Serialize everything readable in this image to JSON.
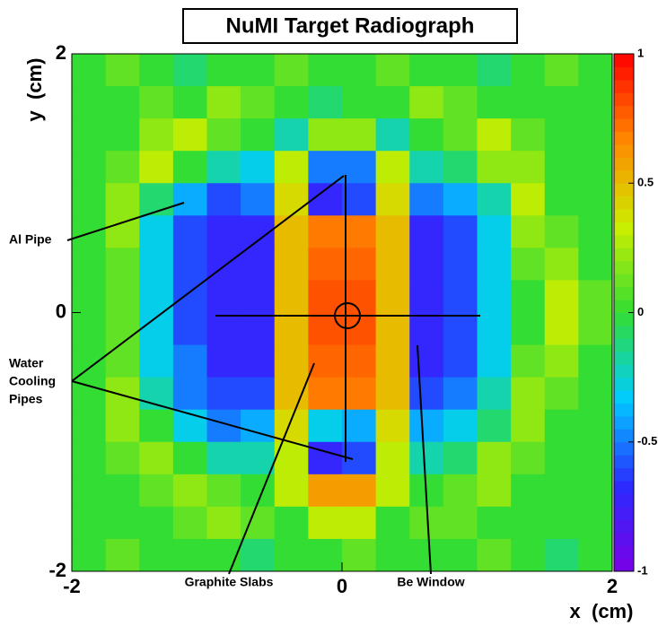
{
  "chart_data": {
    "type": "heatmap",
    "title": "NuMI Target Radiograph",
    "x_label": "x  (cm)",
    "y_label": "y  (cm)",
    "xlim": [
      -2,
      2
    ],
    "ylim": [
      -2,
      2
    ],
    "xticks": [
      -2,
      0,
      2
    ],
    "yticks": [
      -2,
      0,
      2
    ],
    "zlim": [
      -1,
      1
    ],
    "zticks": [
      -1,
      -0.5,
      0,
      0.5,
      1
    ],
    "colorscale": [
      "#7a00e6",
      "#2b2bff",
      "#00ccff",
      "#33dd33",
      "#ccee00",
      "#ff8800",
      "#ff0000"
    ],
    "z": [
      [
        0,
        0.1,
        0,
        -0.1,
        0,
        0,
        0.1,
        0,
        0,
        0.1,
        0,
        0,
        -0.1,
        0,
        0.1,
        0
      ],
      [
        0,
        0,
        0.1,
        0,
        0.2,
        0.1,
        0,
        -0.1,
        0,
        0,
        0.2,
        0.1,
        0,
        0,
        0,
        0
      ],
      [
        0,
        0,
        0.2,
        0.3,
        0.1,
        0,
        -0.2,
        0.2,
        0.2,
        -0.2,
        0,
        0.1,
        0.3,
        0.1,
        0,
        0
      ],
      [
        0,
        0.1,
        0.3,
        0,
        -0.2,
        -0.3,
        0.3,
        -0.5,
        -0.5,
        0.3,
        -0.2,
        -0.1,
        0.2,
        0.2,
        0,
        0
      ],
      [
        0,
        0.2,
        -0.1,
        -0.4,
        -0.6,
        -0.5,
        0.4,
        -0.7,
        -0.6,
        0.4,
        -0.5,
        -0.4,
        -0.2,
        0.3,
        0,
        0
      ],
      [
        0,
        0.2,
        -0.3,
        -0.6,
        -0.7,
        -0.7,
        0.5,
        0.7,
        0.7,
        0.5,
        -0.7,
        -0.6,
        -0.3,
        0.2,
        0.1,
        0
      ],
      [
        0,
        0.1,
        -0.3,
        -0.6,
        -0.7,
        -0.7,
        0.5,
        0.75,
        0.75,
        0.5,
        -0.7,
        -0.6,
        -0.3,
        0.1,
        0.2,
        0
      ],
      [
        0,
        0.1,
        -0.3,
        -0.6,
        -0.7,
        -0.7,
        0.5,
        0.8,
        0.8,
        0.5,
        -0.7,
        -0.6,
        -0.3,
        0,
        0.3,
        0.1
      ],
      [
        0,
        0.1,
        -0.3,
        -0.6,
        -0.7,
        -0.7,
        0.5,
        0.8,
        0.8,
        0.5,
        -0.7,
        -0.6,
        -0.3,
        0,
        0.3,
        0.1
      ],
      [
        0,
        0.1,
        -0.3,
        -0.5,
        -0.7,
        -0.7,
        0.5,
        0.75,
        0.75,
        0.5,
        -0.7,
        -0.6,
        -0.3,
        0.1,
        0.2,
        0
      ],
      [
        0,
        0.2,
        -0.2,
        -0.5,
        -0.6,
        -0.6,
        0.5,
        0.7,
        0.7,
        0.5,
        -0.6,
        -0.5,
        -0.2,
        0.2,
        0.1,
        0
      ],
      [
        0,
        0.2,
        0,
        -0.3,
        -0.5,
        -0.4,
        0.4,
        -0.3,
        -0.4,
        0.4,
        -0.4,
        -0.3,
        -0.1,
        0.2,
        0,
        0
      ],
      [
        0,
        0.1,
        0.2,
        0,
        -0.2,
        -0.2,
        0.3,
        -0.7,
        -0.6,
        0.3,
        -0.2,
        -0.1,
        0.2,
        0.1,
        0,
        0
      ],
      [
        0,
        0,
        0.1,
        0.2,
        0.1,
        0,
        0.3,
        0.6,
        0.6,
        0.3,
        0,
        0.1,
        0.2,
        0,
        0,
        0
      ],
      [
        0,
        0,
        0,
        0.1,
        0.2,
        0.1,
        0,
        0.3,
        0.3,
        0,
        0.1,
        0.1,
        0,
        0,
        0,
        0
      ],
      [
        0,
        0.1,
        0,
        0,
        0,
        -0.1,
        0,
        0,
        0.1,
        0,
        0,
        0,
        0.1,
        0,
        -0.1,
        0
      ]
    ],
    "annotations": [
      [
        "Al Pipe"
      ],
      [
        "Water",
        "Cooling",
        "Pipes"
      ],
      [
        "Graphite Slabs"
      ],
      [
        "Be Window"
      ]
    ]
  }
}
